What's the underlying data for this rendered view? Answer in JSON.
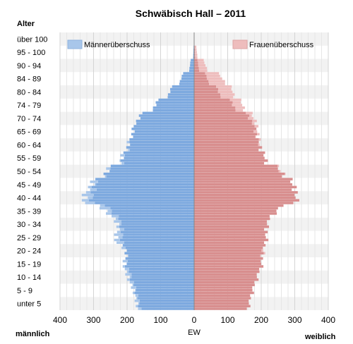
{
  "chart_data": {
    "type": "bar",
    "title": "Schwäbisch Hall – 2011",
    "ylabel": "Alter",
    "xlabel": "EW",
    "left_label": "männlich",
    "right_label": "weiblich",
    "x_ticks": [
      "400",
      "300",
      "200",
      "100",
      "0",
      "100",
      "200",
      "300",
      "400"
    ],
    "xlim": [
      -400,
      400
    ],
    "age_labels": [
      "unter 5",
      "5 - 9",
      "10 - 14",
      "15 - 19",
      "20 - 24",
      "25 - 29",
      "30 - 34",
      "35 - 39",
      "40 - 44",
      "45 - 49",
      "50 - 54",
      "55 - 59",
      "60 - 64",
      "65 - 69",
      "70 - 74",
      "74 - 79",
      "80 - 84",
      "84 - 89",
      "90 - 94",
      "95 - 100",
      "über 100"
    ],
    "groups": [
      {
        "age": "unter 5",
        "men": 170,
        "women": 162
      },
      {
        "age": "5 - 9",
        "men": 178,
        "women": 172
      },
      {
        "age": "10 - 14",
        "men": 195,
        "women": 185
      },
      {
        "age": "15 - 19",
        "men": 210,
        "women": 200
      },
      {
        "age": "20 - 24",
        "men": 200,
        "women": 205
      },
      {
        "age": "25 - 29",
        "men": 235,
        "women": 215
      },
      {
        "age": "30 - 34",
        "men": 225,
        "women": 215
      },
      {
        "age": "35 - 39",
        "men": 250,
        "women": 232
      },
      {
        "age": "40 - 44",
        "men": 330,
        "women": 305
      },
      {
        "age": "45 - 49",
        "men": 315,
        "women": 300
      },
      {
        "age": "50 - 54",
        "men": 270,
        "women": 270
      },
      {
        "age": "55 - 59",
        "men": 220,
        "women": 215
      },
      {
        "age": "60 - 64",
        "men": 200,
        "women": 198
      },
      {
        "age": "65 - 69",
        "men": 185,
        "women": 190
      },
      {
        "age": "70 - 74",
        "men": 175,
        "women": 185
      },
      {
        "age": "74 - 79",
        "men": 125,
        "women": 150
      },
      {
        "age": "80 - 84",
        "men": 80,
        "women": 120
      },
      {
        "age": "84 - 89",
        "men": 45,
        "women": 95
      },
      {
        "age": "90 - 94",
        "men": 15,
        "women": 40
      },
      {
        "age": "95 - 100",
        "men": 3,
        "women": 10
      },
      {
        "age": "über 100",
        "men": 0,
        "women": 1
      }
    ],
    "legend": [
      {
        "label": "Männerüberschuss",
        "color": "#a8c6ea",
        "position": "top-left"
      },
      {
        "label": "Frauenüberschuss",
        "color": "#eebdbd",
        "position": "top-right"
      }
    ],
    "colors": {
      "men": "#7da9df",
      "women": "#d88e8e",
      "men_surplus": "#a8c6ea",
      "women_surplus": "#eebdbd"
    }
  }
}
